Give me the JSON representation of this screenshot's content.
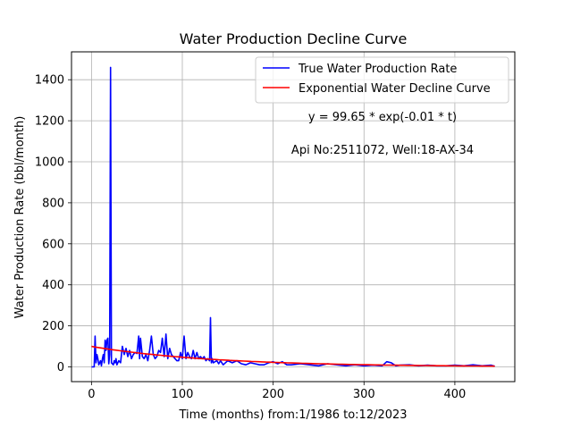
{
  "chart_data": {
    "type": "line",
    "title": "Water Production Decline Curve",
    "xlabel": "Time (months) from:1/1986 to:12/2023",
    "ylabel": "Water Production Rate (bbl/month)",
    "xlim": [
      -22,
      466
    ],
    "ylim": [
      -72,
      1536
    ],
    "xticks": [
      0,
      100,
      200,
      300,
      400
    ],
    "yticks": [
      0,
      200,
      400,
      600,
      800,
      1000,
      1200,
      1400
    ],
    "grid": true,
    "legend_position": "upper-right",
    "annotations": [
      "y = 99.65 * exp(-0.01 * t)",
      "Api No:2511072, Well:18-AX-34"
    ],
    "series": [
      {
        "name": "True Water Production Rate",
        "color": "#0000ff",
        "x": [
          0,
          3,
          4,
          5,
          6,
          7,
          8,
          9,
          10,
          11,
          12,
          13,
          14,
          15,
          16,
          17,
          18,
          19,
          20,
          21,
          22,
          23,
          24,
          25,
          26,
          27,
          28,
          30,
          32,
          34,
          36,
          38,
          40,
          42,
          44,
          46,
          48,
          50,
          52,
          53,
          54,
          56,
          58,
          60,
          62,
          64,
          66,
          68,
          70,
          72,
          74,
          76,
          78,
          80,
          82,
          84,
          86,
          88,
          90,
          92,
          94,
          96,
          98,
          100,
          102,
          104,
          106,
          108,
          110,
          112,
          114,
          116,
          118,
          120,
          122,
          124,
          126,
          128,
          130,
          131,
          132,
          133,
          134,
          136,
          138,
          140,
          142,
          145,
          150,
          155,
          160,
          165,
          170,
          175,
          180,
          185,
          190,
          195,
          200,
          205,
          210,
          215,
          220,
          230,
          240,
          250,
          260,
          270,
          280,
          290,
          300,
          310,
          320,
          325,
          330,
          335,
          340,
          350,
          360,
          370,
          380,
          390,
          400,
          410,
          420,
          430,
          440,
          444
        ],
        "y": [
          0,
          0,
          150,
          20,
          60,
          40,
          10,
          20,
          30,
          5,
          40,
          60,
          20,
          130,
          80,
          130,
          140,
          15,
          60,
          1460,
          20,
          15,
          10,
          30,
          20,
          40,
          10,
          30,
          20,
          100,
          60,
          90,
          50,
          80,
          40,
          60,
          70,
          65,
          150,
          40,
          140,
          50,
          40,
          60,
          30,
          80,
          150,
          60,
          40,
          50,
          80,
          70,
          140,
          50,
          160,
          40,
          90,
          60,
          50,
          40,
          30,
          30,
          70,
          40,
          150,
          40,
          70,
          50,
          40,
          80,
          40,
          70,
          40,
          50,
          40,
          50,
          30,
          40,
          30,
          240,
          20,
          40,
          20,
          25,
          30,
          15,
          30,
          10,
          30,
          20,
          30,
          15,
          10,
          20,
          15,
          10,
          10,
          20,
          25,
          15,
          25,
          10,
          10,
          15,
          10,
          5,
          15,
          10,
          5,
          10,
          5,
          8,
          5,
          25,
          20,
          5,
          8,
          10,
          5,
          8,
          5,
          5,
          8,
          5,
          10,
          5,
          8,
          3
        ]
      },
      {
        "name": "Exponential Water Decline Curve",
        "color": "#ff0000",
        "a": 99.65,
        "b": 0.0075,
        "x_range": [
          0,
          444
        ]
      }
    ]
  }
}
